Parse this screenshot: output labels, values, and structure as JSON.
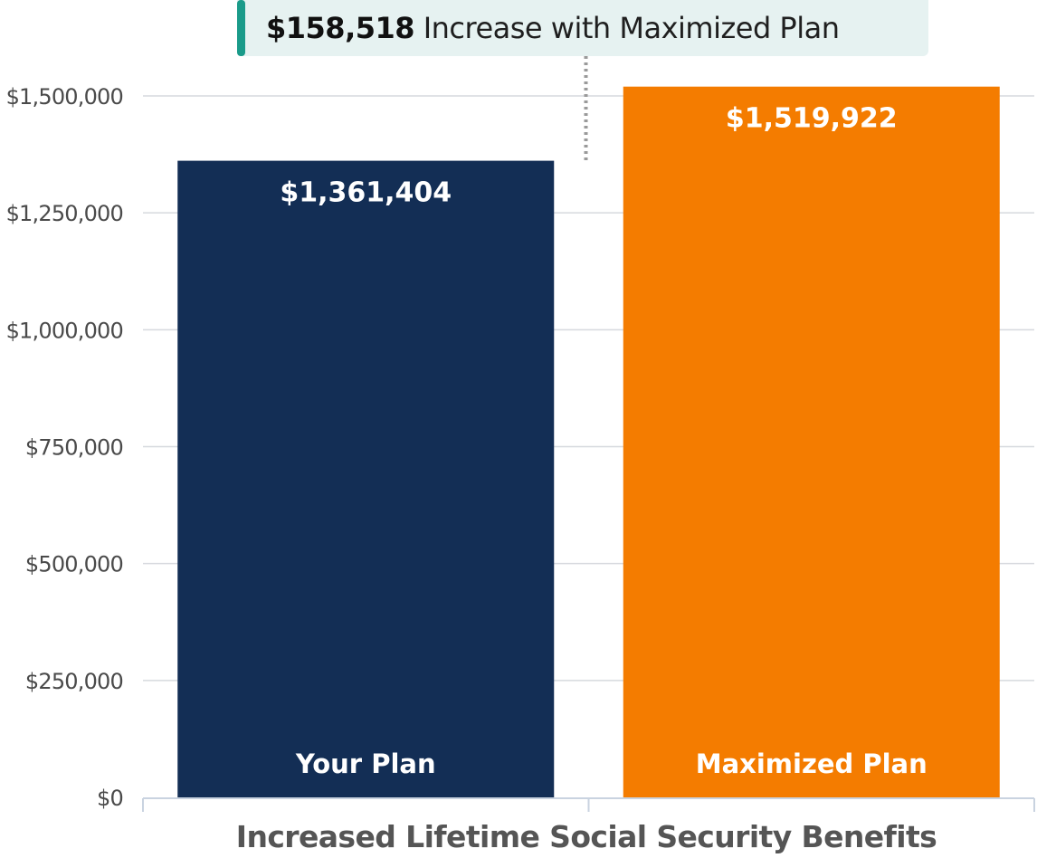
{
  "callout": {
    "amount": "$158,518",
    "text": "Increase with Maximized Plan",
    "accent_color": "#1a9b8a",
    "background_color": "#e6f2f1"
  },
  "chart_data": {
    "type": "bar",
    "title": "",
    "xlabel": "Increased Lifetime Social Security Benefits",
    "ylabel": "",
    "categories": [
      "Your Plan",
      "Maximized Plan"
    ],
    "values": [
      1361404,
      1519922
    ],
    "value_labels": [
      "$1,361,404",
      "$1,519,922"
    ],
    "colors": [
      "#132e55",
      "#f47c00"
    ],
    "ylim": [
      0,
      1500000
    ],
    "yticks": [
      0,
      250000,
      500000,
      750000,
      1000000,
      1250000,
      1500000
    ],
    "ytick_labels": [
      "$0",
      "$250,000",
      "$500,000",
      "$750,000",
      "$1,000,000",
      "$1,250,000",
      "$1,500,000"
    ],
    "grid": true,
    "difference": 158518
  }
}
